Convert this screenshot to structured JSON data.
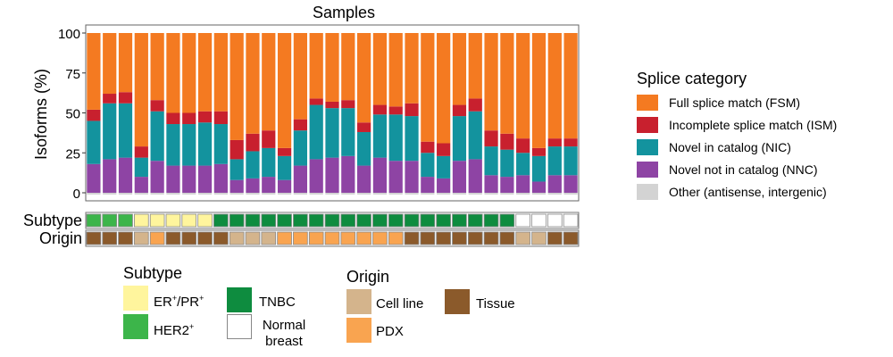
{
  "chart_data": {
    "type": "bar",
    "stacked": true,
    "title": "Samples",
    "ylabel": "Isoforms (%)",
    "ylim": [
      0,
      100
    ],
    "yticks": [
      "100",
      "75",
      "50",
      "25",
      "0"
    ],
    "series": [
      {
        "name": "Novel not in catalog (NNC)",
        "color": "#8e44a4",
        "values": [
          18,
          21,
          22,
          10,
          20,
          17,
          17,
          17,
          18,
          8,
          9,
          10,
          8,
          17,
          21,
          22,
          23,
          17,
          22,
          20,
          20,
          10,
          9,
          20,
          21,
          11,
          10,
          11,
          7,
          11,
          11
        ]
      },
      {
        "name": "Novel in catalog (NIC)",
        "color": "#13939e",
        "values": [
          27,
          35,
          34,
          12,
          31,
          26,
          26,
          27,
          25,
          13,
          17,
          18,
          15,
          22,
          34,
          31,
          30,
          21,
          27,
          29,
          28,
          15,
          14,
          28,
          30,
          18,
          17,
          14,
          16,
          18,
          18
        ]
      },
      {
        "name": "Incomplete splice match (ISM)",
        "color": "#c8202e",
        "values": [
          7,
          6,
          7,
          7,
          7,
          7,
          7,
          7,
          8,
          12,
          11,
          11,
          5,
          7,
          4,
          4,
          5,
          6,
          6,
          5,
          8,
          7,
          8,
          7,
          8,
          10,
          10,
          9,
          5,
          5,
          5
        ]
      },
      {
        "name": "Full splice match (FSM)",
        "color": "#f47a21",
        "values": [
          48,
          38,
          37,
          71,
          42,
          50,
          50,
          49,
          49,
          67,
          63,
          61,
          72,
          54,
          41,
          43,
          42,
          56,
          45,
          46,
          44,
          68,
          69,
          45,
          41,
          61,
          63,
          66,
          72,
          66,
          66
        ]
      },
      {
        "name": "Other (antisense, intergenic)",
        "color": "#d3d3d3",
        "values": [
          0,
          0,
          0,
          0,
          0,
          0,
          0,
          0,
          0,
          0,
          0,
          0,
          0,
          0,
          0,
          0,
          0,
          0,
          0,
          0,
          0,
          0,
          0,
          0,
          0,
          0,
          0,
          0,
          0,
          0,
          0
        ]
      }
    ],
    "legend_title": "Splice category",
    "legend_placement": "right",
    "legend": [
      {
        "label": "Full splice match (FSM)",
        "color": "#f47a21"
      },
      {
        "label": "Incomplete splice match (ISM)",
        "color": "#c8202e"
      },
      {
        "label": "Novel in catalog (NIC)",
        "color": "#13939e"
      },
      {
        "label": "Novel not in catalog (NNC)",
        "color": "#8e44a4"
      },
      {
        "label": "Other (antisense, intergenic)",
        "color": "#d3d3d3"
      }
    ],
    "annotation_rows": [
      {
        "label": "Subtype",
        "values": [
          "HER2+",
          "HER2+",
          "HER2+",
          "ER+/PR+",
          "ER+/PR+",
          "ER+/PR+",
          "ER+/PR+",
          "ER+/PR+",
          "TNBC",
          "TNBC",
          "TNBC",
          "TNBC",
          "TNBC",
          "TNBC",
          "TNBC",
          "TNBC",
          "TNBC",
          "TNBC",
          "TNBC",
          "TNBC",
          "TNBC",
          "TNBC",
          "TNBC",
          "TNBC",
          "TNBC",
          "TNBC",
          "TNBC",
          "Normal breast",
          "Normal breast",
          "Normal breast",
          "Normal breast"
        ]
      },
      {
        "label": "Origin",
        "values": [
          "Tissue",
          "Tissue",
          "Tissue",
          "Cell line",
          "PDX",
          "Tissue",
          "Tissue",
          "Tissue",
          "Tissue",
          "Cell line",
          "Cell line",
          "Cell line",
          "PDX",
          "PDX",
          "PDX",
          "PDX",
          "PDX",
          "PDX",
          "PDX",
          "PDX",
          "Tissue",
          "Tissue",
          "Tissue",
          "Tissue",
          "Tissue",
          "Tissue",
          "Tissue",
          "Cell line",
          "Cell line",
          "Tissue",
          "Tissue"
        ]
      }
    ],
    "category_colors": {
      "ER+/PR+": "#fff59d",
      "HER2+": "#3cb54a",
      "TNBC": "#0e8c3f",
      "Normal breast": "#ffffff",
      "Cell line": "#d4b48c",
      "PDX": "#f9a450",
      "Tissue": "#8b5a2b"
    }
  },
  "sub_legends": {
    "subtype": {
      "title": "Subtype",
      "items": [
        {
          "base": "ER",
          "sup1": "+",
          "mid": "/PR",
          "sup2": "+"
        },
        {
          "base": "HER2",
          "sup1": "+"
        },
        {
          "text": "TNBC"
        },
        {
          "text": "Normal breast"
        }
      ]
    },
    "origin": {
      "title": "Origin",
      "items": [
        {
          "text": "Cell line"
        },
        {
          "text": "PDX"
        },
        {
          "text": "Tissue"
        }
      ]
    }
  }
}
